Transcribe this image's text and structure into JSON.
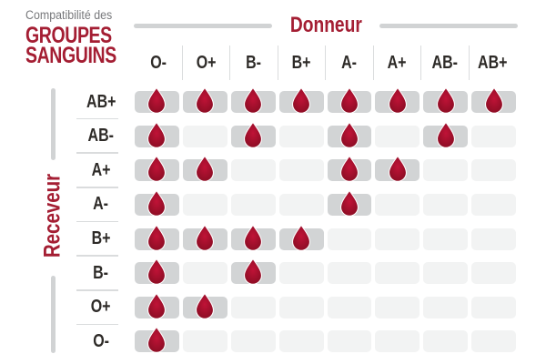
{
  "title": {
    "subtitle": "Compatibilité des",
    "main_lines": [
      "GROUPES",
      "SANGUINS"
    ]
  },
  "axes": {
    "donor_label": "Donneur",
    "receiver_label": "Receveur"
  },
  "chart_data": {
    "type": "heatmap",
    "title": "Compatibilité des groupes sanguins",
    "x_label": "Donneur",
    "y_label": "Receveur",
    "columns": [
      "O-",
      "O+",
      "B-",
      "B+",
      "A-",
      "A+",
      "AB-",
      "AB+"
    ],
    "rows": [
      "AB+",
      "AB-",
      "A+",
      "A-",
      "B+",
      "B-",
      "O+",
      "O-"
    ],
    "matrix": [
      [
        1,
        1,
        1,
        1,
        1,
        1,
        1,
        1
      ],
      [
        1,
        0,
        1,
        0,
        1,
        0,
        1,
        0
      ],
      [
        1,
        1,
        0,
        0,
        1,
        1,
        0,
        0
      ],
      [
        1,
        0,
        0,
        0,
        1,
        0,
        0,
        0
      ],
      [
        1,
        1,
        1,
        1,
        0,
        0,
        0,
        0
      ],
      [
        1,
        0,
        1,
        0,
        0,
        0,
        0,
        0
      ],
      [
        1,
        1,
        0,
        0,
        0,
        0,
        0,
        0
      ],
      [
        1,
        0,
        0,
        0,
        0,
        0,
        0,
        0
      ]
    ],
    "marker": "blood-drop",
    "marker_meaning": "compatible",
    "legend_position": "none",
    "grid": "off"
  },
  "icons": {
    "compatible_marker": "blood-drop-icon"
  },
  "colors": {
    "accent_red": "#a41e33",
    "text_dark": "#2e2b28",
    "text_gray": "#77787b",
    "line_gray": "#d1d3d4",
    "separator_gray": "#dadcdd",
    "cell_filled": "#d2d4d5",
    "cell_empty": "#f2f3f3",
    "drop_center": "#c01337",
    "drop_edge": "#8c0d24",
    "background": "#ffffff"
  }
}
